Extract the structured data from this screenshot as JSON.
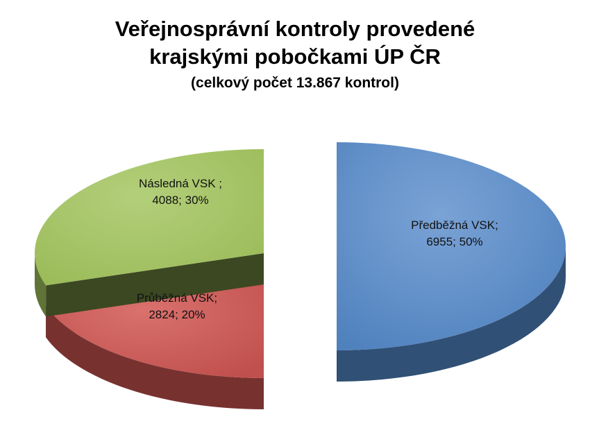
{
  "chart_data": {
    "type": "pie",
    "title_line1": "Veřejnosprávní kontroly provedené",
    "title_line2": "krajskými pobočkami ÚP ČR",
    "subtitle": "(celkový počet 13.867 kontrol)",
    "slices": [
      {
        "label_line1": "Předběžná VSK;",
        "label_line2": "6955; 50%",
        "value": 6955,
        "percent": 50,
        "color": "#4f81bd"
      },
      {
        "label_line1": "Průběžná VSK;",
        "label_line2": "2824; 20%",
        "value": 2824,
        "percent": 20,
        "color": "#c0504d"
      },
      {
        "label_line1": "Následná VSK ;",
        "label_line2": "4088; 30%",
        "value": 4088,
        "percent": 30,
        "color": "#9bbb59"
      }
    ]
  }
}
